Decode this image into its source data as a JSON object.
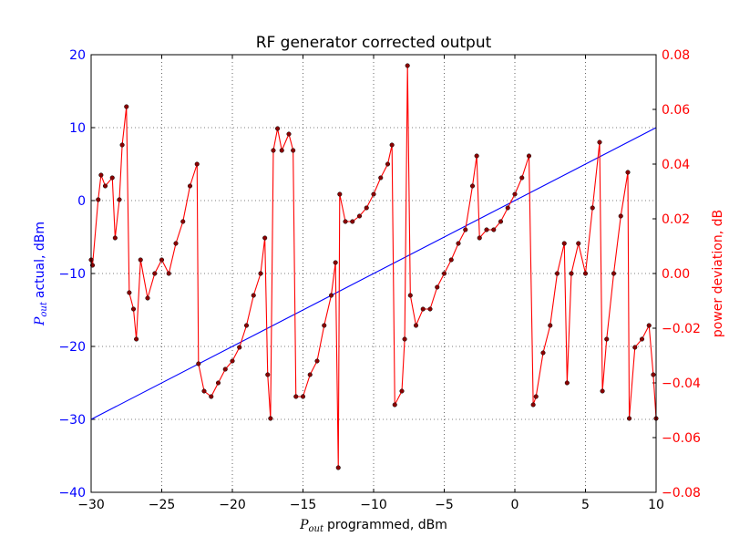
{
  "chart_data": {
    "type": "line",
    "title": "RF generator corrected output",
    "xlabel": {
      "symbol": "P",
      "subscript": "out",
      "text": "programmed, dBm"
    },
    "ylabel": {
      "symbol": "P",
      "subscript": "out",
      "text": "actual, dBm",
      "color": "#0000ff"
    },
    "y2label": {
      "text": "power deviation, dB",
      "color": "#ff0000"
    },
    "xlim": [
      -30,
      10
    ],
    "ylim": [
      -40,
      20
    ],
    "y2lim": [
      -0.08,
      0.08
    ],
    "xticks": [
      {
        "value": -30,
        "label": "−30"
      },
      {
        "value": -25,
        "label": "−25"
      },
      {
        "value": -20,
        "label": "−20"
      },
      {
        "value": -15,
        "label": "−15"
      },
      {
        "value": -10,
        "label": "−10"
      },
      {
        "value": -5,
        "label": "−5"
      },
      0,
      5,
      10
    ],
    "yticks": [
      {
        "value": -40,
        "label": "−40"
      },
      {
        "value": -30,
        "label": "−30"
      },
      {
        "value": -20,
        "label": "−20"
      },
      {
        "value": -10,
        "label": "−10"
      },
      0,
      10,
      20
    ],
    "y2ticks": [
      {
        "value": -0.08,
        "label": "−0.08"
      },
      {
        "value": -0.06,
        "label": "−0.06"
      },
      {
        "value": -0.04,
        "label": "−0.04"
      },
      {
        "value": -0.02,
        "label": "−0.02"
      },
      {
        "value": 0,
        "label": "0.00"
      },
      0.02,
      0.04,
      0.06,
      0.08
    ],
    "grid": true,
    "series": [
      {
        "color": "#0000ff",
        "x": [
          -30,
          10
        ],
        "values": [
          -30,
          10
        ]
      },
      {
        "color": "#ff0000",
        "marker_color": "#8b0000",
        "axis": "y2",
        "x": [
          -30,
          -29.9,
          -29.5,
          -29.3,
          -29,
          -28.5,
          -28.3,
          -28,
          -27.8,
          -27.5,
          -27.3,
          -27,
          -26.8,
          -26.5,
          -26,
          -25.5,
          -25,
          -24.5,
          -24,
          -23.5,
          -23,
          -22.5,
          -22.4,
          -22,
          -21.5,
          -21,
          -20.5,
          -20,
          -19.5,
          -19,
          -18.5,
          -18,
          -17.7,
          -17.5,
          -17.3,
          -17.1,
          -16.8,
          -16.5,
          -16,
          -15.7,
          -15.5,
          -15,
          -14.5,
          -14,
          -13.5,
          -13,
          -12.7,
          -12.5,
          -12.4,
          -12,
          -11.5,
          -11,
          -10.5,
          -10,
          -9.5,
          -9,
          -8.7,
          -8.5,
          -8,
          -7.8,
          -7.6,
          -7.4,
          -7,
          -6.5,
          -6,
          -5.5,
          -5,
          -4.5,
          -4,
          -3.5,
          -3,
          -2.7,
          -2.5,
          -2,
          -1.5,
          -1,
          -0.5,
          0,
          0.5,
          1,
          1.3,
          1.5,
          2,
          2.5,
          3,
          3.5,
          3.7,
          4,
          4.5,
          5,
          5.5,
          6,
          6.2,
          6.5,
          7,
          7.5,
          8,
          8.1,
          8.5,
          9,
          9.5,
          9.8,
          10
        ],
        "values": [
          0.005,
          0.003,
          0.027,
          0.036,
          0.032,
          0.035,
          0.013,
          0.027,
          0.047,
          0.061,
          -0.007,
          -0.013,
          -0.024,
          0.005,
          -0.009,
          0,
          0.005,
          0,
          0.011,
          0.019,
          0.032,
          0.04,
          -0.033,
          -0.043,
          -0.045,
          -0.04,
          -0.035,
          -0.032,
          -0.027,
          -0.019,
          -0.008,
          0,
          0.013,
          -0.037,
          -0.053,
          0.045,
          0.053,
          0.045,
          0.051,
          0.045,
          -0.045,
          -0.045,
          -0.037,
          -0.032,
          -0.019,
          -0.008,
          0.004,
          -0.071,
          0.029,
          0.019,
          0.019,
          0.021,
          0.024,
          0.029,
          0.035,
          0.04,
          0.047,
          -0.048,
          -0.043,
          -0.024,
          0.076,
          -0.008,
          -0.019,
          -0.013,
          -0.013,
          -0.005,
          0,
          0.005,
          0.011,
          0.016,
          0.032,
          0.043,
          0.013,
          0.016,
          0.016,
          0.019,
          0.024,
          0.029,
          0.035,
          0.043,
          -0.048,
          -0.045,
          -0.029,
          -0.019,
          0,
          0.011,
          -0.04,
          0,
          0.011,
          0,
          0.024,
          0.048,
          -0.043,
          -0.024,
          0,
          0.021,
          0.037,
          -0.053,
          -0.027,
          -0.024,
          -0.019,
          -0.037,
          -0.053
        ]
      }
    ]
  }
}
